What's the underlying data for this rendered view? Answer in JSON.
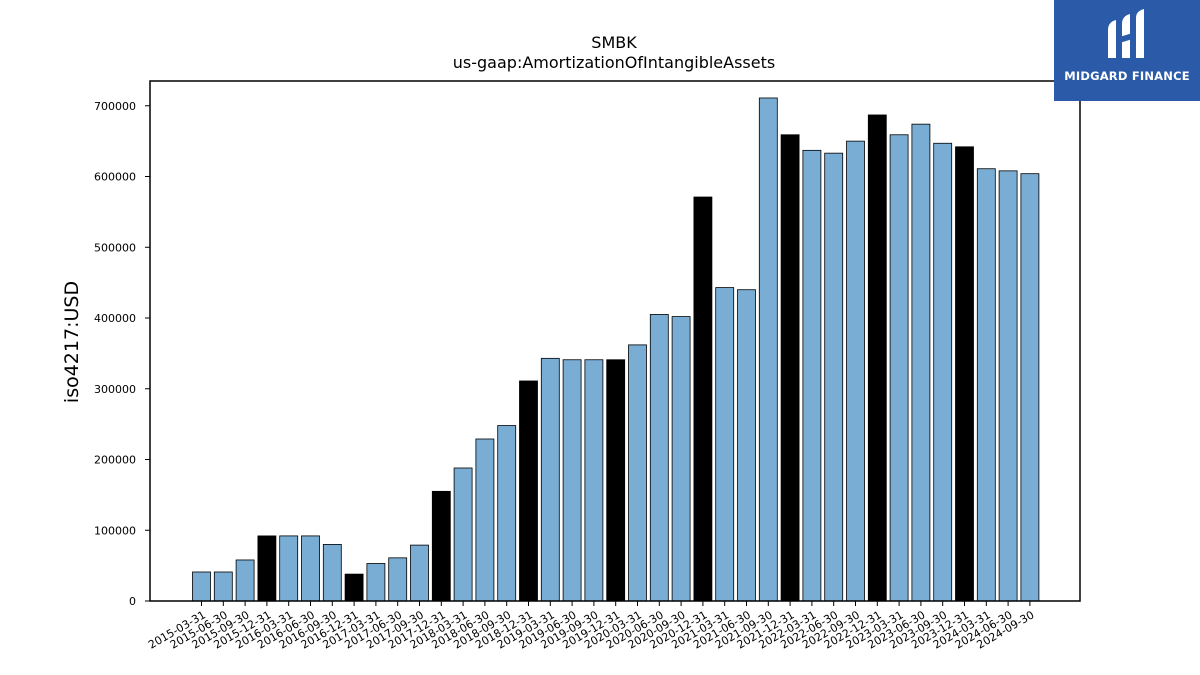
{
  "brand": {
    "name": "MIDGARD FINANCE",
    "bg_color": "#2a5aa8"
  },
  "chart_data": {
    "type": "bar",
    "title": "SMBK",
    "subtitle": "us-gaap:AmortizationOfIntangibleAssets",
    "xlabel": "",
    "ylabel": "iso4217:USD",
    "ylim": [
      0,
      735000
    ],
    "yticks": [
      0,
      100000,
      200000,
      300000,
      400000,
      500000,
      600000,
      700000
    ],
    "grid": false,
    "colors": {
      "quarter": "#7aadd4",
      "year_end": "#000000",
      "edge": "#000000"
    },
    "categories": [
      "2015-03-31",
      "2015-06-30",
      "2015-09-30",
      "2015-12-31",
      "2016-03-31",
      "2016-06-30",
      "2016-09-30",
      "2016-12-31",
      "2017-03-31",
      "2017-06-30",
      "2017-09-30",
      "2017-12-31",
      "2018-03-31",
      "2018-06-30",
      "2018-09-30",
      "2018-12-31",
      "2019-03-31",
      "2019-06-30",
      "2019-09-30",
      "2019-12-31",
      "2020-03-31",
      "2020-06-30",
      "2020-09-30",
      "2020-12-31",
      "2021-03-31",
      "2021-06-30",
      "2021-09-30",
      "2021-12-31",
      "2022-03-31",
      "2022-06-30",
      "2022-09-30",
      "2022-12-31",
      "2023-03-31",
      "2023-06-30",
      "2023-09-30",
      "2023-12-31",
      "2024-03-31",
      "2024-06-30",
      "2024-09-30"
    ],
    "values": [
      41000,
      41000,
      58000,
      92000,
      92000,
      92000,
      80000,
      38000,
      53000,
      61000,
      79000,
      155000,
      188000,
      229000,
      248000,
      311000,
      343000,
      341000,
      341000,
      341000,
      362000,
      405000,
      402000,
      571000,
      443000,
      440000,
      711000,
      659000,
      637000,
      633000,
      650000,
      687000,
      659000,
      674000,
      647000,
      642000,
      611000,
      608000,
      604000
    ],
    "year_end_flags": [
      false,
      false,
      false,
      true,
      false,
      false,
      false,
      true,
      false,
      false,
      false,
      true,
      false,
      false,
      false,
      true,
      false,
      false,
      false,
      true,
      false,
      false,
      false,
      true,
      false,
      false,
      false,
      true,
      false,
      false,
      false,
      true,
      false,
      false,
      false,
      true,
      false,
      false,
      false
    ]
  }
}
